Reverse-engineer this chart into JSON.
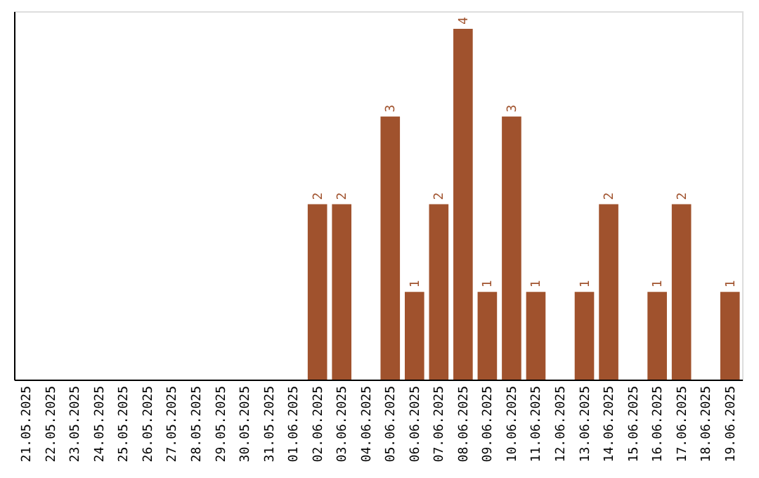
{
  "chart_data": {
    "type": "bar",
    "categories": [
      "21.05.2025",
      "22.05.2025",
      "23.05.2025",
      "24.05.2025",
      "25.05.2025",
      "26.05.2025",
      "27.05.2025",
      "28.05.2025",
      "29.05.2025",
      "30.05.2025",
      "31.05.2025",
      "01.06.2025",
      "02.06.2025",
      "03.06.2025",
      "04.06.2025",
      "05.06.2025",
      "06.06.2025",
      "07.06.2025",
      "08.06.2025",
      "09.06.2025",
      "10.06.2025",
      "11.06.2025",
      "12.06.2025",
      "13.06.2025",
      "14.06.2025",
      "15.06.2025",
      "16.06.2025",
      "17.06.2025",
      "18.06.2025",
      "19.06.2025"
    ],
    "values": [
      null,
      null,
      null,
      null,
      null,
      null,
      null,
      null,
      null,
      null,
      null,
      null,
      2,
      2,
      null,
      3,
      1,
      2,
      4,
      1,
      3,
      1,
      null,
      1,
      2,
      null,
      1,
      2,
      null,
      1
    ],
    "data_labels": true,
    "color": "#a0522d",
    "ylim": [
      0,
      4.2
    ],
    "tick_labels": "x"
  }
}
